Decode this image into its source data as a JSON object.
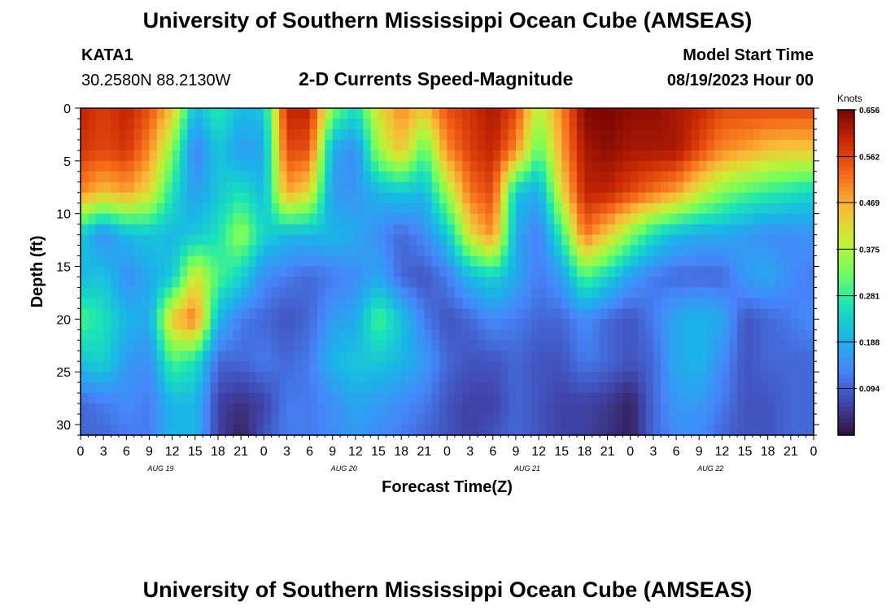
{
  "header": {
    "title": "University of Southern Mississippi Ocean Cube (AMSEAS)",
    "station_id": "KATA1",
    "coordinates": "30.2580N  88.2130W",
    "chart_title": "2-D Currents Speed-Magnitude",
    "start_label": "Model Start Time",
    "start_value": "08/19/2023 Hour 00"
  },
  "footer": {
    "title": "University of Southern Mississippi Ocean Cube (AMSEAS)"
  },
  "chart_data": {
    "type": "heatmap",
    "title": "2-D Currents Speed-Magnitude",
    "xlabel": "Forecast Time(Z)",
    "ylabel": "Depth (ft)",
    "x_range_hours": [
      0,
      96
    ],
    "x_tick_labels": [
      "0",
      "3",
      "6",
      "9",
      "12",
      "15",
      "18",
      "21",
      "0",
      "3",
      "6",
      "9",
      "12",
      "15",
      "18",
      "21",
      "0",
      "3",
      "6",
      "9",
      "12",
      "15",
      "18",
      "21",
      "0",
      "3",
      "6",
      "9",
      "12",
      "15",
      "18",
      "21",
      "0"
    ],
    "x_tick_step_hours": 3,
    "day_labels": [
      {
        "label": "AUG 19",
        "hour": 10.5
      },
      {
        "label": "AUG 20",
        "hour": 34.5
      },
      {
        "label": "AUG 21",
        "hour": 58.5
      },
      {
        "label": "AUG 22",
        "hour": 82.5
      }
    ],
    "y_range_ft": [
      0,
      31
    ],
    "y_ticks": [
      0,
      5,
      10,
      15,
      20,
      25,
      30
    ],
    "colorbar": {
      "label": "Knots",
      "min": 0.0,
      "max": 0.656,
      "ticks": [
        "0.656",
        "0.562",
        "0.469",
        "0.375",
        "0.281",
        "0.188",
        "0.094"
      ],
      "colormap": [
        "#30123b",
        "#4146ad",
        "#4686fa",
        "#1ab5e8",
        "#1ae4b6",
        "#72fe5e",
        "#c8ef34",
        "#faba39",
        "#f66b19",
        "#cb2a04",
        "#7a0403"
      ]
    },
    "grid": {
      "times_hours": [
        0,
        3,
        6,
        9,
        12,
        15,
        18,
        21,
        24,
        27,
        30,
        33,
        36,
        39,
        42,
        45,
        48,
        51,
        54,
        57,
        60,
        63,
        66,
        69,
        72,
        75,
        78,
        81,
        84,
        87,
        90,
        93,
        96
      ],
      "depths_ft": [
        0,
        4,
        8,
        12,
        16,
        20,
        24,
        28,
        31
      ],
      "speed_knots": [
        [
          0.6,
          0.57,
          0.6,
          0.55,
          0.45,
          0.2,
          0.28,
          0.2,
          0.22,
          0.6,
          0.6,
          0.34,
          0.25,
          0.42,
          0.5,
          0.45,
          0.55,
          0.58,
          0.62,
          0.56,
          0.38,
          0.5,
          0.65,
          0.656,
          0.64,
          0.64,
          0.62,
          0.6,
          0.56,
          0.56,
          0.56,
          0.56,
          0.56
        ],
        [
          0.58,
          0.56,
          0.58,
          0.5,
          0.34,
          0.12,
          0.22,
          0.16,
          0.18,
          0.56,
          0.55,
          0.18,
          0.14,
          0.36,
          0.45,
          0.3,
          0.5,
          0.57,
          0.6,
          0.5,
          0.3,
          0.48,
          0.62,
          0.64,
          0.62,
          0.62,
          0.62,
          0.56,
          0.5,
          0.48,
          0.45,
          0.44,
          0.44
        ],
        [
          0.5,
          0.45,
          0.48,
          0.42,
          0.26,
          0.16,
          0.22,
          0.26,
          0.2,
          0.48,
          0.42,
          0.16,
          0.15,
          0.2,
          0.22,
          0.2,
          0.36,
          0.52,
          0.56,
          0.22,
          0.18,
          0.42,
          0.6,
          0.6,
          0.56,
          0.52,
          0.48,
          0.4,
          0.34,
          0.3,
          0.28,
          0.26,
          0.24
        ],
        [
          0.22,
          0.14,
          0.2,
          0.22,
          0.2,
          0.22,
          0.26,
          0.36,
          0.24,
          0.2,
          0.2,
          0.2,
          0.18,
          0.14,
          0.1,
          0.14,
          0.22,
          0.42,
          0.5,
          0.18,
          0.12,
          0.28,
          0.52,
          0.44,
          0.34,
          0.25,
          0.2,
          0.18,
          0.18,
          0.16,
          0.14,
          0.14,
          0.15
        ],
        [
          0.2,
          0.22,
          0.14,
          0.18,
          0.22,
          0.42,
          0.3,
          0.24,
          0.14,
          0.12,
          0.1,
          0.12,
          0.14,
          0.18,
          0.1,
          0.08,
          0.12,
          0.2,
          0.24,
          0.18,
          0.12,
          0.16,
          0.3,
          0.24,
          0.16,
          0.12,
          0.1,
          0.1,
          0.1,
          0.16,
          0.18,
          0.14,
          0.12
        ],
        [
          0.3,
          0.26,
          0.2,
          0.18,
          0.45,
          0.52,
          0.2,
          0.12,
          0.1,
          0.08,
          0.1,
          0.16,
          0.18,
          0.3,
          0.22,
          0.12,
          0.08,
          0.1,
          0.14,
          0.12,
          0.1,
          0.1,
          0.14,
          0.1,
          0.08,
          0.12,
          0.18,
          0.2,
          0.18,
          0.08,
          0.1,
          0.12,
          0.14
        ],
        [
          0.22,
          0.24,
          0.16,
          0.14,
          0.3,
          0.26,
          0.1,
          0.1,
          0.12,
          0.1,
          0.12,
          0.2,
          0.22,
          0.22,
          0.2,
          0.16,
          0.1,
          0.08,
          0.08,
          0.1,
          0.08,
          0.08,
          0.12,
          0.1,
          0.08,
          0.1,
          0.18,
          0.2,
          0.14,
          0.08,
          0.1,
          0.1,
          0.1
        ],
        [
          0.1,
          0.12,
          0.14,
          0.12,
          0.2,
          0.2,
          0.06,
          0.04,
          0.06,
          0.12,
          0.12,
          0.14,
          0.18,
          0.16,
          0.14,
          0.12,
          0.08,
          0.06,
          0.06,
          0.1,
          0.08,
          0.06,
          0.06,
          0.05,
          0.02,
          0.1,
          0.16,
          0.16,
          0.12,
          0.08,
          0.08,
          0.1,
          0.1
        ],
        [
          0.1,
          0.1,
          0.12,
          0.12,
          0.2,
          0.2,
          0.06,
          0.02,
          0.08,
          0.12,
          0.12,
          0.14,
          0.16,
          0.14,
          0.12,
          0.1,
          0.08,
          0.06,
          0.08,
          0.1,
          0.08,
          0.06,
          0.06,
          0.04,
          0.02,
          0.1,
          0.14,
          0.14,
          0.1,
          0.08,
          0.08,
          0.1,
          0.1
        ]
      ]
    }
  }
}
